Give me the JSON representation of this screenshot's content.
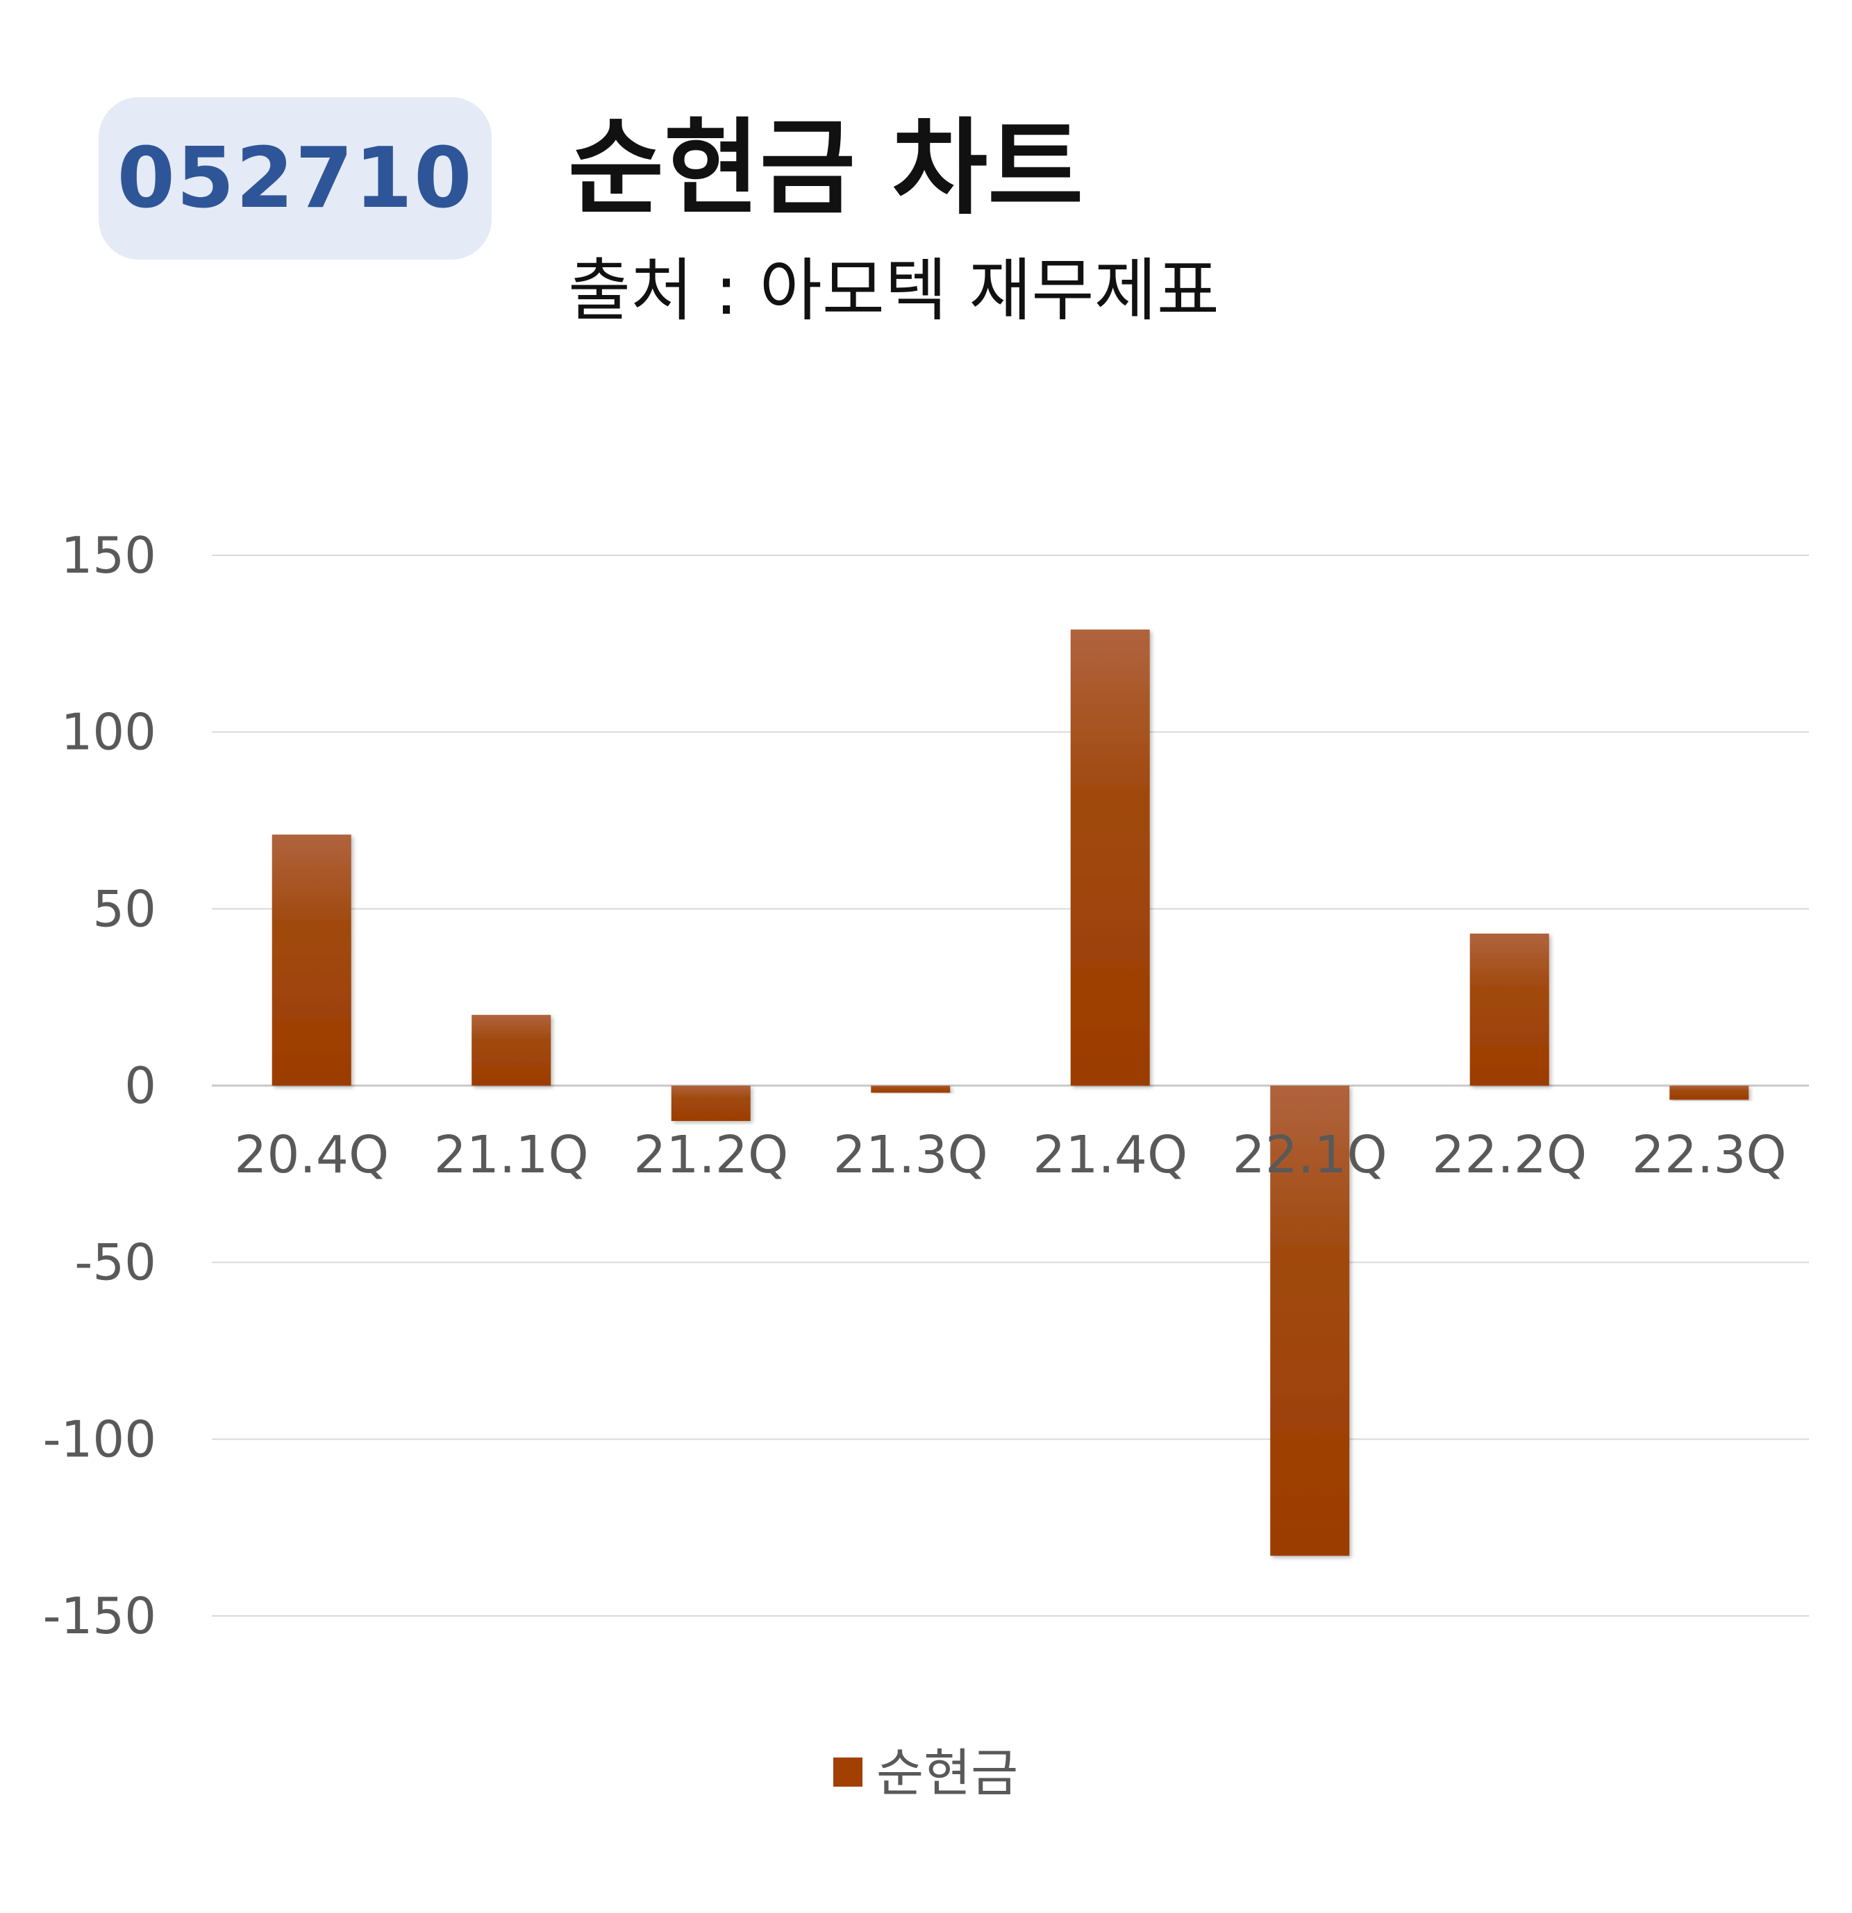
{
  "header": {
    "code": "052710",
    "title": "순현금 차트",
    "subtitle": "출처 : 아모텍 재무제표"
  },
  "colors": {
    "bar_top": "#b0633d",
    "bar_main": "#a14000",
    "badge_bg": "#e4eaf6",
    "badge_text": "#2e5597",
    "grid": "#d9d9d9",
    "axis_text": "#595959"
  },
  "chart_data": {
    "type": "bar",
    "categories": [
      "20.4Q",
      "21.1Q",
      "21.2Q",
      "21.3Q",
      "21.4Q",
      "22.1Q",
      "22.2Q",
      "22.3Q"
    ],
    "series": [
      {
        "name": "순현금",
        "values": [
          71,
          20,
          -10,
          -2,
          129,
          -133,
          43,
          -4
        ]
      }
    ],
    "ylim": [
      -150,
      150
    ],
    "yticks": [
      150,
      100,
      50,
      0,
      -50,
      -100,
      -150
    ],
    "grid": true,
    "legend": "bottom"
  }
}
